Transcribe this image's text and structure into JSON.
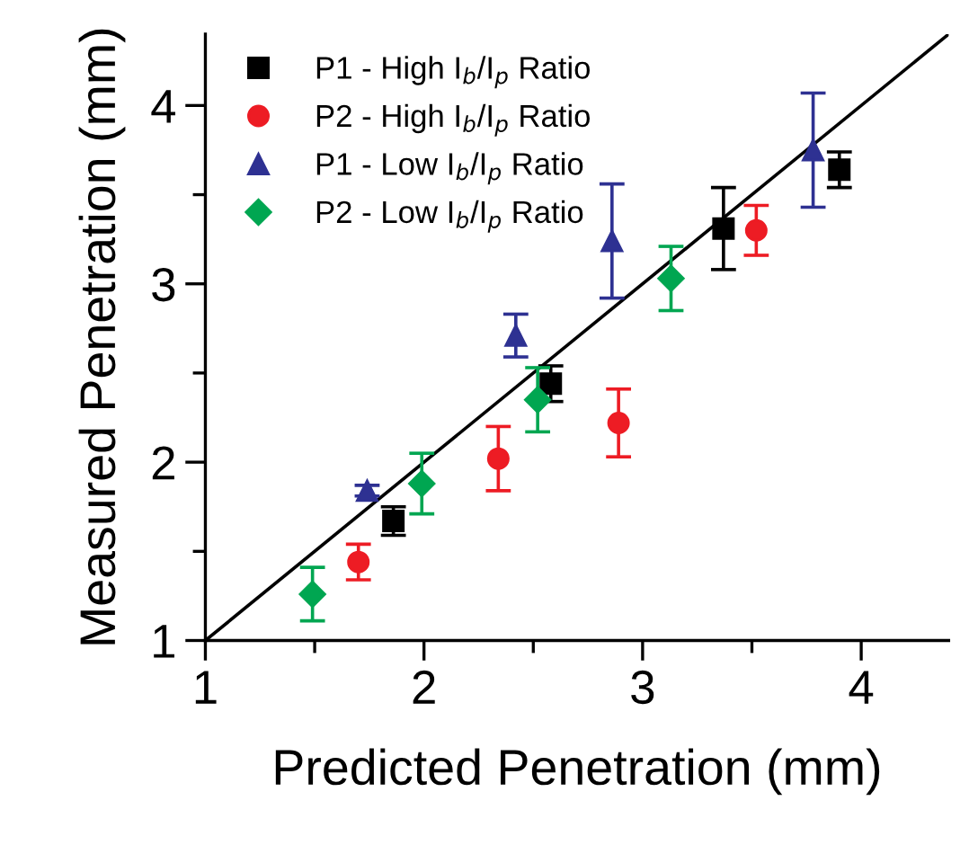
{
  "chart_data": {
    "type": "scatter",
    "xlabel": "Predicted Penetration (mm)",
    "ylabel": "Measured Penetration (mm)",
    "xlim": [
      1,
      4.4
    ],
    "ylim": [
      1,
      4.4
    ],
    "xticks": [
      1,
      2,
      3,
      4
    ],
    "yticks": [
      1,
      2,
      3,
      4
    ],
    "grid": false,
    "legend": "top left",
    "series": [
      {
        "name": "P1 - High I$_{b}$/I$_{p}$ Ratio",
        "color": "#000000",
        "marker": "square",
        "x": [
          1.86,
          2.58,
          3.37,
          3.9
        ],
        "values": [
          1.67,
          2.44,
          3.31,
          3.64
        ],
        "errors": [
          0.08,
          0.1,
          0.23,
          0.1
        ]
      },
      {
        "name": "P2 - High I$_{b}$/I$_{p}$ Ratio",
        "color": "#ed1c24",
        "marker": "circle",
        "x": [
          1.7,
          2.34,
          2.89,
          3.52
        ],
        "values": [
          1.44,
          2.02,
          2.22,
          3.3
        ],
        "errors": [
          0.1,
          0.18,
          0.19,
          0.14
        ]
      },
      {
        "name": "P1 - Low I$_{b}$/I$_{p}$ Ratio",
        "color": "#2e3192",
        "marker": "triangle",
        "x": [
          1.74,
          2.42,
          2.86,
          3.78
        ],
        "values": [
          1.84,
          2.71,
          3.24,
          3.75
        ],
        "errors": [
          0.03,
          0.12,
          0.32,
          0.32
        ]
      },
      {
        "name": "P2 - Low I$_{b}$/I$_{p}$ Ratio",
        "color": "#00a651",
        "marker": "diamond",
        "x": [
          1.49,
          1.99,
          2.52,
          3.13
        ],
        "values": [
          1.26,
          1.88,
          2.35,
          3.03
        ],
        "errors": [
          0.15,
          0.17,
          0.18,
          0.18
        ]
      },
      {
        "type": "line",
        "color": "#000000",
        "marker": "none",
        "x": [
          1,
          4.4
        ],
        "values": [
          1,
          4.4
        ]
      }
    ]
  }
}
